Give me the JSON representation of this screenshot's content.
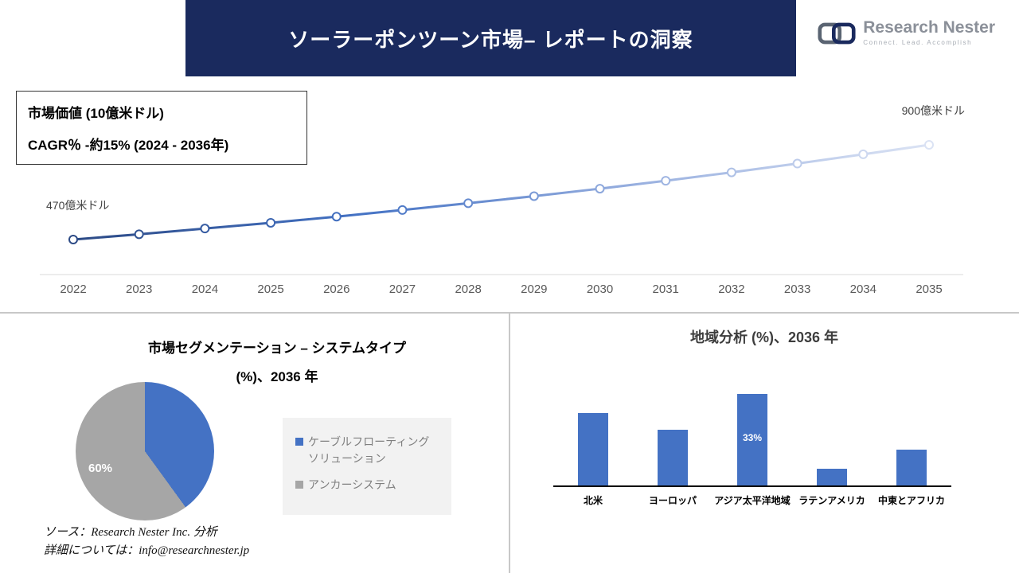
{
  "header": {
    "title": "ソーラーポンツーン市場– レポートの洞察",
    "logo_name": "Research Nester",
    "logo_tagline": "Connect. Lead. Accomplish"
  },
  "info_box": {
    "line1": "市場価値 (10億米ドル)",
    "line2": "CAGR％ -約15% (2024 - 2036年)"
  },
  "colors": {
    "navy": "#1a2a5e",
    "accent_blue": "#4472c4",
    "gray": "#a6a6a6"
  },
  "chart_data": [
    {
      "type": "line",
      "title": "市場価値 (10億米ドル)",
      "x": [
        "2022",
        "2023",
        "2024",
        "2025",
        "2026",
        "2027",
        "2028",
        "2029",
        "2030",
        "2031",
        "2032",
        "2033",
        "2034",
        "2035"
      ],
      "values": [
        470,
        494,
        520,
        546,
        574,
        604,
        635,
        667,
        701,
        737,
        775,
        815,
        857,
        900
      ],
      "start_label": "470億米ドル",
      "end_label": "900億米ドル",
      "ylim": [
        450,
        920
      ],
      "grid": "off",
      "gradient": [
        "#2c4a85",
        "#4472c4",
        "#9ab1e0",
        "#dbe3f4"
      ],
      "marker": "circle-white-fill"
    },
    {
      "type": "pie",
      "title_line1": "市場セグメンテーション – システムタイプ",
      "title_line2": "(%)、2036 年",
      "slices": [
        {
          "label": "ケーブルフローティングソリューション",
          "value": 40,
          "color": "#4472c4"
        },
        {
          "label": "アンカーシステム",
          "value": 60,
          "color": "#a6a6a6"
        }
      ],
      "shown_label": "60%",
      "legend_position": "right"
    },
    {
      "type": "bar",
      "title": "地域分析 (%)、2036 年",
      "categories": [
        "北米",
        "ヨーロッパ",
        "アジア太平洋地域",
        "ラテンアメリカ",
        "中東とアフリカ"
      ],
      "values": [
        26,
        20,
        33,
        6,
        13
      ],
      "labels": [
        "",
        "",
        "33%",
        "",
        ""
      ],
      "color": "#4472c4",
      "ylim": [
        0,
        35
      ],
      "grid": "off"
    }
  ],
  "footer": {
    "source": "ソース：Research Nester Inc. 分析",
    "details": "詳細については：info@researchnester.jp"
  }
}
